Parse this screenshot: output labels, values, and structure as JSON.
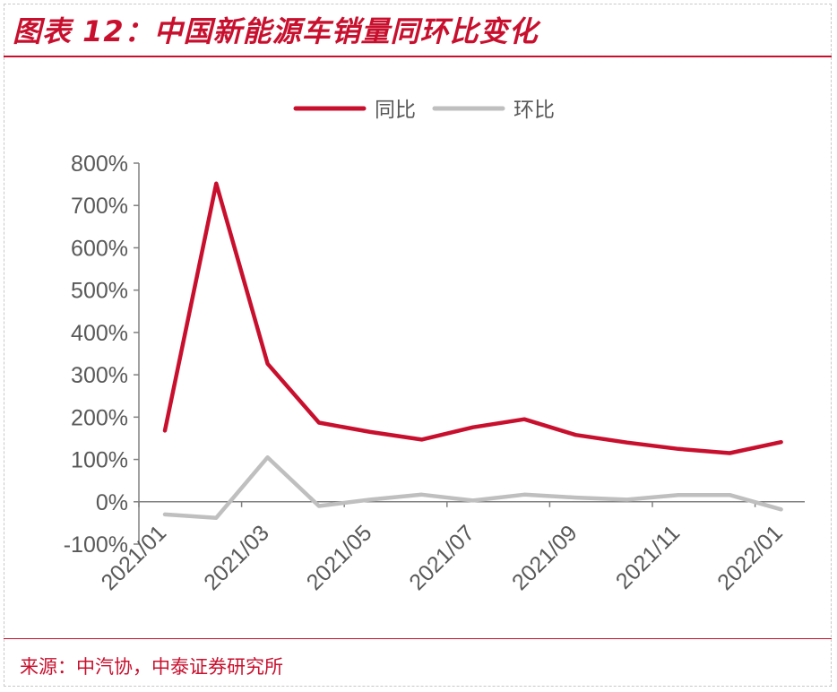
{
  "header": {
    "title": "图表 12：中国新能源车销量同环比变化"
  },
  "footer": {
    "source": "来源：中汽协，中泰证券研究所"
  },
  "colors": {
    "accent": "#c8102e",
    "series_yoy": "#c8102e",
    "series_mom": "#bfbfbf",
    "axis_text": "#595959"
  },
  "chart_data": {
    "type": "line",
    "title": "",
    "xlabel": "",
    "ylabel": "",
    "ylim": [
      -100,
      800
    ],
    "y_ticks": [
      -100,
      0,
      100,
      200,
      300,
      400,
      500,
      600,
      700,
      800
    ],
    "y_tick_labels": [
      "-100%",
      "0%",
      "100%",
      "200%",
      "300%",
      "400%",
      "500%",
      "600%",
      "700%",
      "800%"
    ],
    "categories": [
      "2021/01",
      "2021/02",
      "2021/03",
      "2021/04",
      "2021/05",
      "2021/06",
      "2021/07",
      "2021/08",
      "2021/09",
      "2021/10",
      "2021/11",
      "2021/12",
      "2022/01"
    ],
    "x_tick_labels": [
      "2021/01",
      "2021/03",
      "2021/05",
      "2021/07",
      "2021/09",
      "2021/11",
      "2022/01"
    ],
    "grid": false,
    "legend_position": "top-center",
    "series": [
      {
        "name": "同比",
        "color": "#c8102e",
        "values": [
          168,
          752,
          326,
          187,
          165,
          147,
          176,
          195,
          158,
          140,
          125,
          115,
          141
        ]
      },
      {
        "name": "环比",
        "color": "#bfbfbf",
        "values": [
          -30,
          -38,
          105,
          -10,
          5,
          17,
          3,
          17,
          10,
          5,
          16,
          16,
          -18
        ]
      }
    ]
  }
}
